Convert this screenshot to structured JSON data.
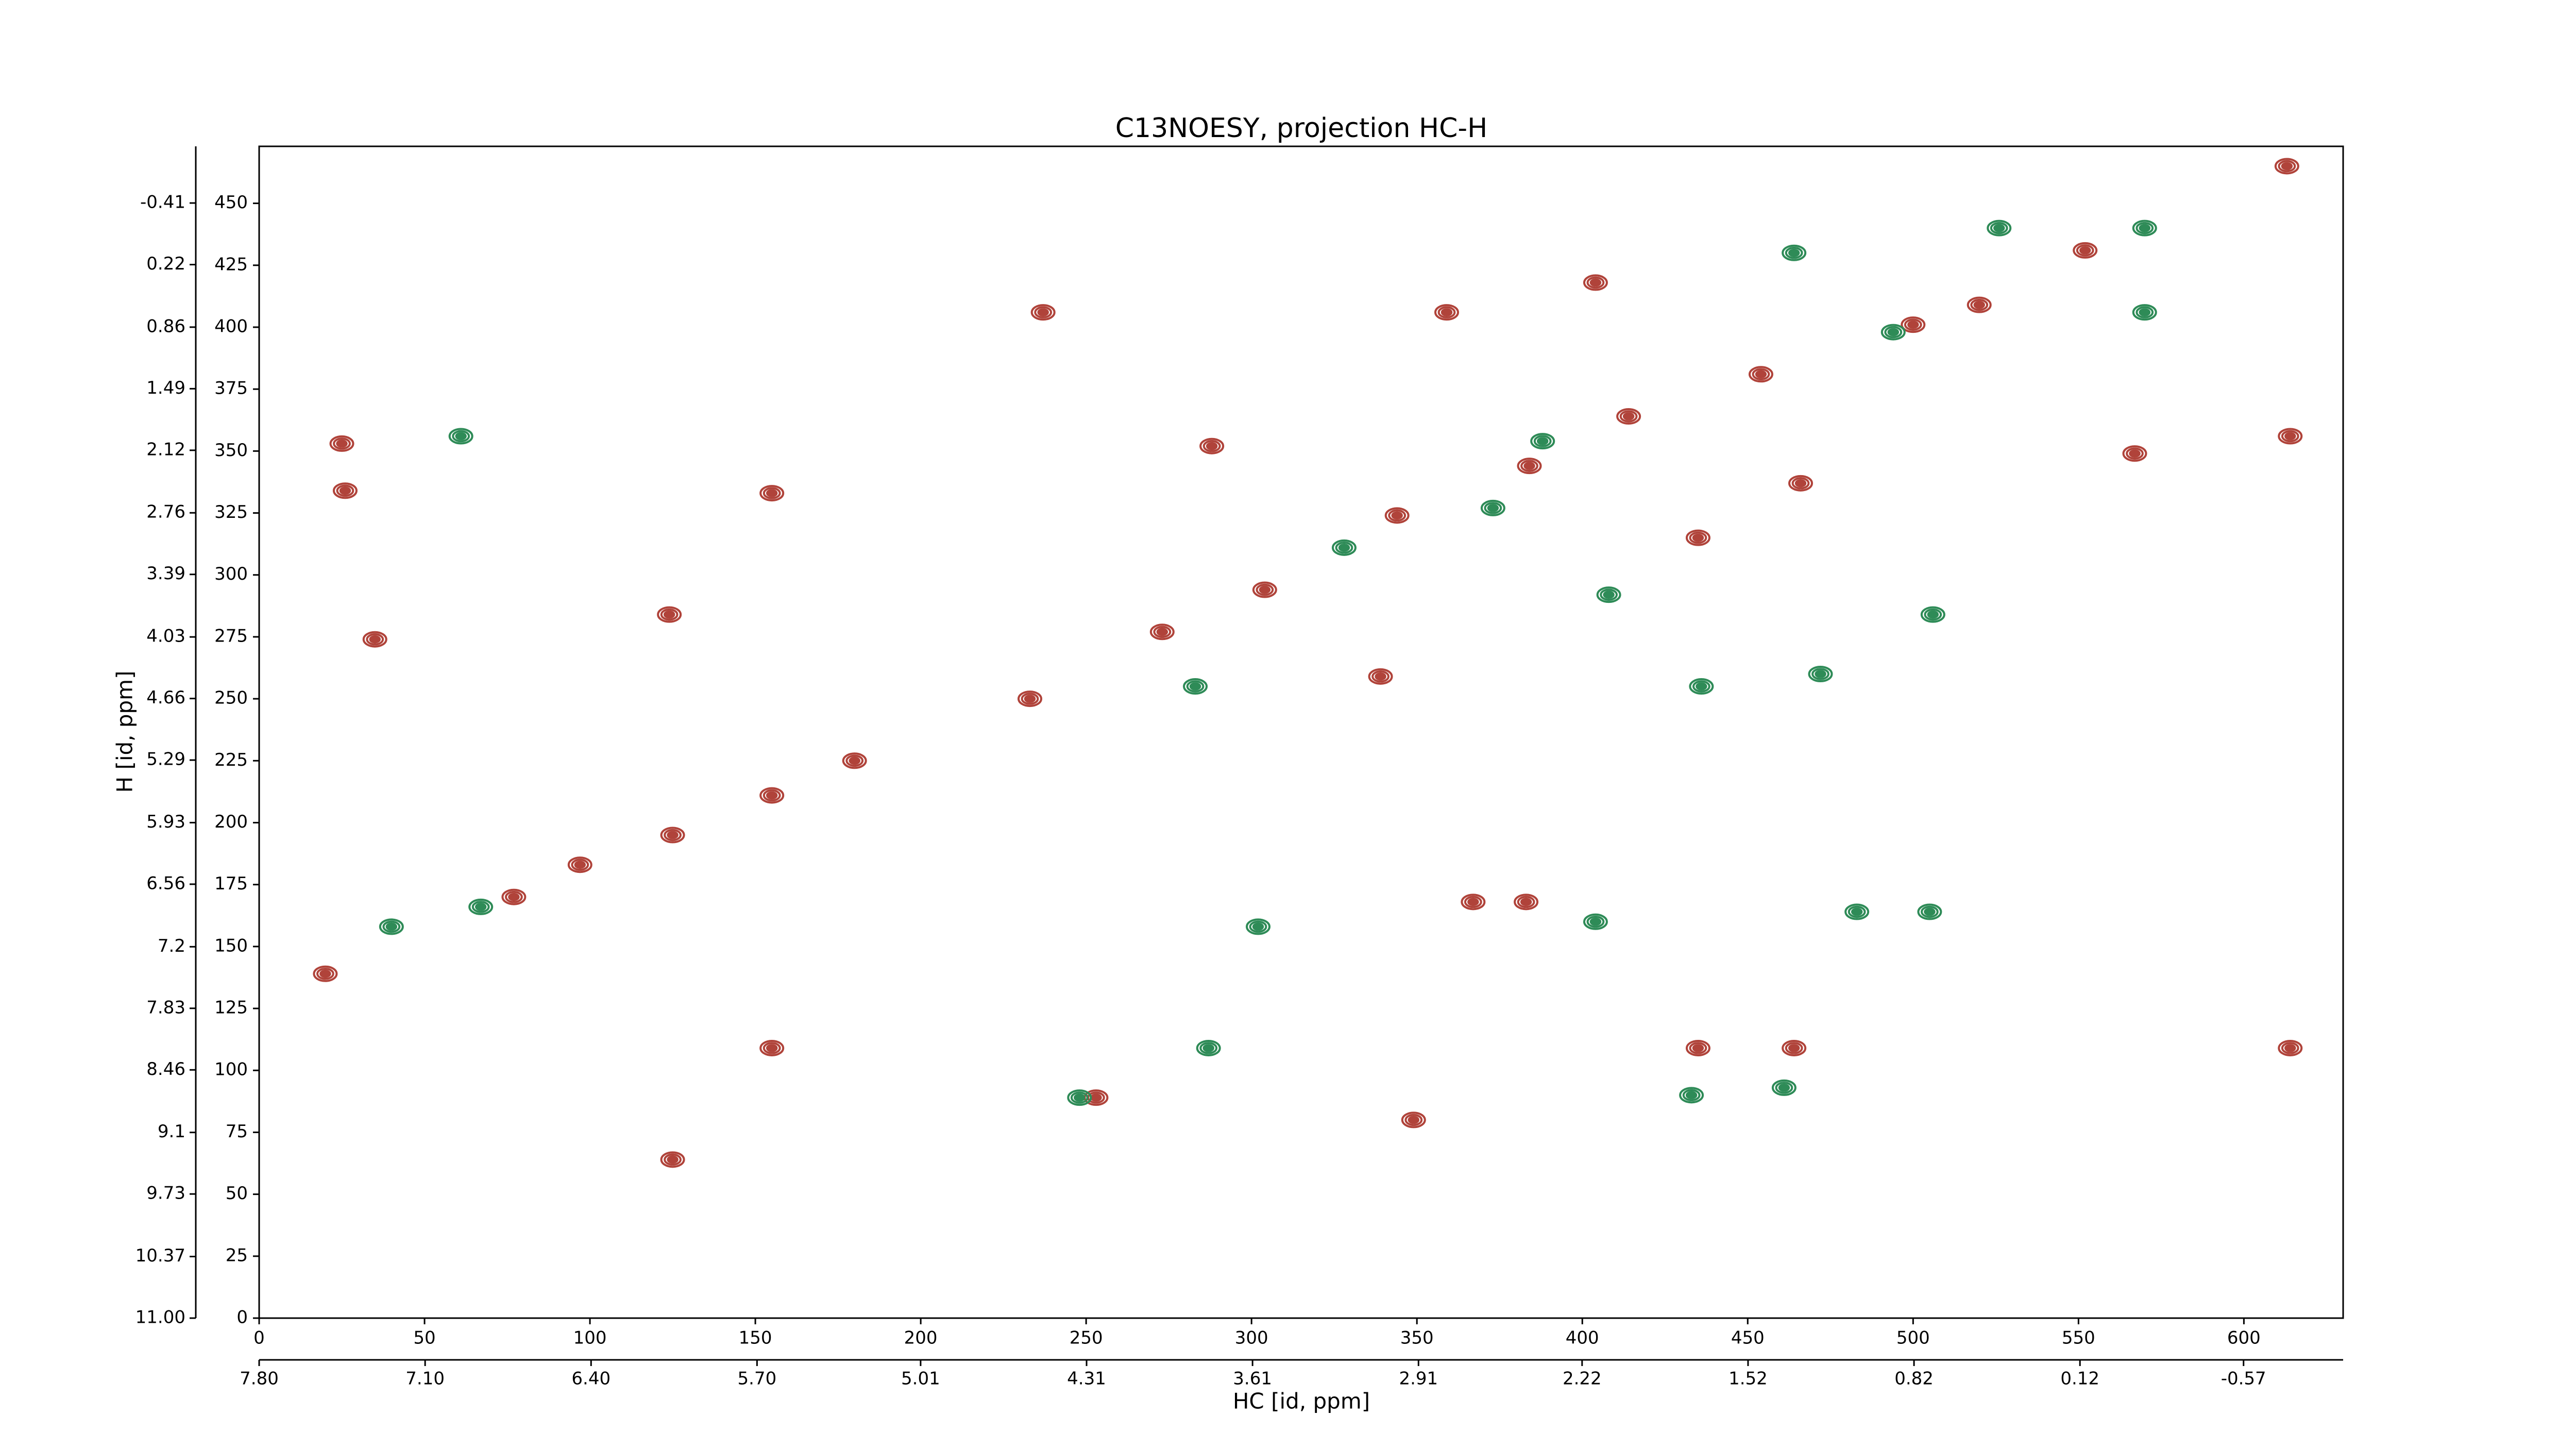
{
  "chart_data": {
    "type": "contour",
    "title": "C13NOESY, projection HC-H",
    "xlabel": "HC [id, ppm]",
    "ylabel": "H [id, ppm]",
    "xlim": [
      0,
      630
    ],
    "xticks": [
      0,
      50,
      100,
      150,
      200,
      250,
      300,
      350,
      400,
      450,
      500,
      550,
      600
    ],
    "ylim": [
      0,
      473
    ],
    "yticks": [
      0,
      25,
      50,
      75,
      100,
      125,
      150,
      175,
      200,
      225,
      250,
      275,
      300,
      325,
      350,
      375,
      400,
      425,
      450
    ],
    "x2lim": [
      7.8,
      -0.99
    ],
    "x2ticks": [
      {
        "value": 7.8,
        "label": "7.80"
      },
      {
        "value": 7.1,
        "label": "7.10"
      },
      {
        "value": 6.4,
        "label": "6.40"
      },
      {
        "value": 5.7,
        "label": "5.70"
      },
      5.01,
      4.31,
      3.61,
      2.91,
      2.22,
      1.52,
      0.82,
      0.12,
      -0.57
    ],
    "y2lim": [
      11,
      -0.99
    ],
    "y2ticks": [
      {
        "value": 11,
        "label": "11.00"
      },
      10.37,
      9.73,
      9.1,
      8.46,
      7.83,
      7.2,
      6.56,
      5.93,
      5.29,
      4.66,
      4.03,
      3.39,
      2.76,
      2.12,
      1.49,
      0.86,
      0.22,
      -0.41
    ],
    "series": [
      {
        "color": "#b0433a",
        "x": [
          613,
          552,
          614,
          614,
          125,
          97,
          155,
          180,
          125,
          155,
          383,
          367,
          435,
          464,
          253,
          349,
          25,
          26,
          35,
          124,
          155,
          237,
          359,
          404,
          288,
          567,
          466,
          435,
          339,
          20,
          77,
          233,
          273,
          304,
          344,
          384,
          414,
          454,
          500,
          520
        ],
        "values": [
          465,
          431,
          356,
          109,
          195,
          183,
          211,
          225,
          64,
          109,
          168,
          168,
          109,
          109,
          89,
          80,
          353,
          334,
          274,
          284,
          333,
          406,
          406,
          418,
          352,
          349,
          337,
          315,
          259,
          139,
          170,
          250,
          277,
          294,
          324,
          344,
          364,
          381,
          401,
          409
        ]
      },
      {
        "color": "#2e8b57",
        "x": [
          570,
          464,
          526,
          433,
          461,
          505,
          483,
          404,
          302,
          248,
          287,
          506,
          472,
          408,
          436,
          283,
          61,
          40,
          67,
          570,
          388,
          328,
          494,
          373
        ],
        "values": [
          440,
          430,
          440,
          90,
          93,
          164,
          164,
          160,
          158,
          89,
          109,
          284,
          260,
          292,
          255,
          255,
          356,
          158,
          166,
          406,
          354,
          311,
          398,
          327
        ]
      }
    ]
  }
}
